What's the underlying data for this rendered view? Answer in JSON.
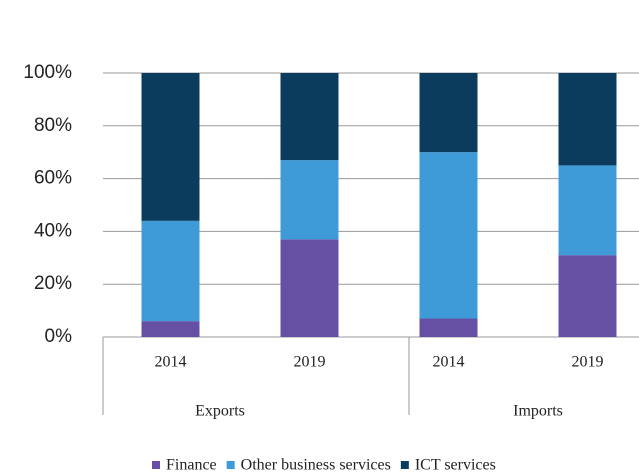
{
  "chart_data": {
    "type": "stacked_bar",
    "categories": [
      "2014",
      "2019",
      "2014",
      "2019"
    ],
    "groups": [
      "Exports",
      "Imports"
    ],
    "series": [
      {
        "name": "Finance",
        "color": "#6650a4",
        "values": [
          6,
          37,
          7,
          31
        ]
      },
      {
        "name": "Other business services",
        "color": "#3f9bd8",
        "values": [
          38,
          30,
          63,
          34
        ]
      },
      {
        "name": "ICT services",
        "color": "#0b3c5d",
        "values": [
          56,
          33,
          30,
          35
        ]
      }
    ],
    "ylim": [
      0,
      100
    ],
    "yticks": [
      {
        "value": 0,
        "label": "0%"
      },
      {
        "value": 20,
        "label": "20%"
      },
      {
        "value": 40,
        "label": "40%"
      },
      {
        "value": 60,
        "label": "60%"
      },
      {
        "value": 80,
        "label": "80%"
      },
      {
        "value": 100,
        "label": "100%"
      }
    ],
    "grid": true,
    "legend": "bottom"
  }
}
